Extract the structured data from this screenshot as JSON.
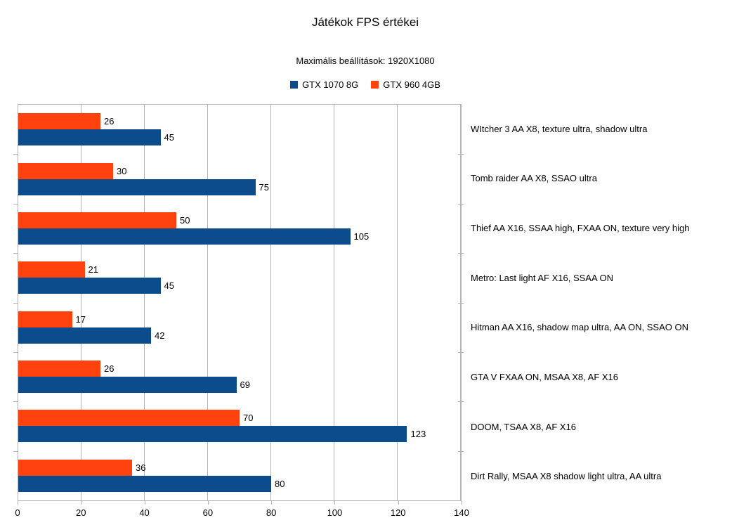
{
  "chart_data": {
    "type": "bar",
    "orientation": "horizontal",
    "title": "Játékok FPS értékei",
    "subtitle": "Maximális beállítások: 1920X1080",
    "categories": [
      "WItcher 3 AA X8, texture ultra, shadow ultra",
      "Tomb raider AA X8, SSAO ultra",
      "Thief AA X16, SSAA high, FXAA ON, texture very high",
      "Metro: Last light AF X16, SSAA ON",
      "Hitman AA X16, shadow map ultra, AA ON, SSAO ON",
      "GTA V FXAA ON, MSAA X8, AF X16",
      "DOOM, TSAA X8, AF X16",
      "Dirt Rally, MSAA X8 shadow light ultra, AA ultra"
    ],
    "series": [
      {
        "name": "GTX 1070 8G",
        "color": "#0D4C8C",
        "values": [
          45,
          75,
          105,
          45,
          42,
          69,
          123,
          80
        ]
      },
      {
        "name": "GTX 960 4GB",
        "color": "#FF420E",
        "values": [
          26,
          30,
          50,
          21,
          17,
          26,
          70,
          36
        ]
      }
    ],
    "xlim": [
      0,
      140
    ],
    "x_ticks": [
      0,
      20,
      40,
      60,
      80,
      100,
      120,
      140
    ],
    "grid": true,
    "gridline_color": "#b3b3b3",
    "legend_position": "top",
    "value_labels": true
  }
}
